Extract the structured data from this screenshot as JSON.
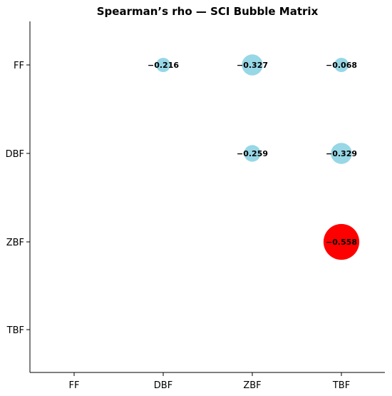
{
  "chart_data": {
    "type": "scatter",
    "title": "Spearman’s rho — SCI Bubble Matrix",
    "xlabel": "",
    "ylabel": "",
    "x_categories": [
      "FF",
      "DBF",
      "ZBF",
      "TBF"
    ],
    "y_categories": [
      "FF",
      "DBF",
      "ZBF",
      "TBF"
    ],
    "grid": false,
    "legend": "none",
    "colors": {
      "default": "#97d7e6",
      "highlight": "#ff0000"
    },
    "points": [
      {
        "x": "DBF",
        "y": "FF",
        "value": -0.216,
        "label": "−0.216",
        "highlight": false
      },
      {
        "x": "ZBF",
        "y": "FF",
        "value": -0.327,
        "label": "−0.327",
        "highlight": false
      },
      {
        "x": "TBF",
        "y": "FF",
        "value": -0.068,
        "label": "−0.068",
        "highlight": false
      },
      {
        "x": "ZBF",
        "y": "DBF",
        "value": -0.259,
        "label": "−0.259",
        "highlight": false
      },
      {
        "x": "TBF",
        "y": "DBF",
        "value": -0.329,
        "label": "−0.329",
        "highlight": false
      },
      {
        "x": "TBF",
        "y": "ZBF",
        "value": -0.558,
        "label": "−0.558",
        "highlight": true
      }
    ]
  }
}
